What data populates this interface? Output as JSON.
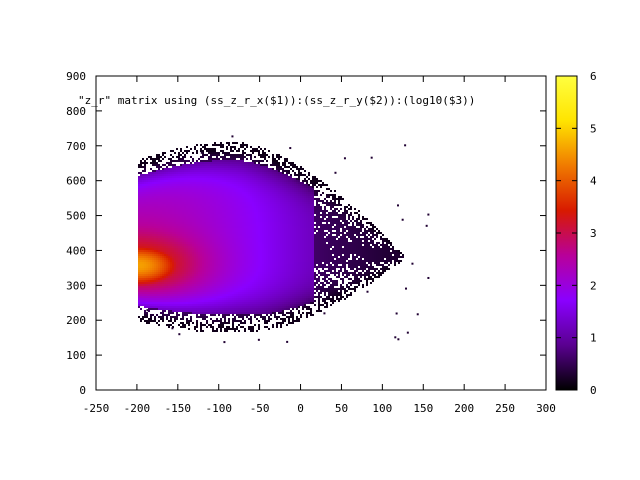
{
  "chart_data": {
    "type": "heatmap",
    "title": "",
    "legend_entry": "\"z_r\" matrix using (ss_z_r_x($1)):(ss_z_r_y($2)):(log10($3))",
    "legend_placement": "top-left, inside plot",
    "xlabel": "",
    "ylabel": "",
    "xlim": [
      -250,
      300
    ],
    "ylim": [
      0,
      900
    ],
    "x_ticks": [
      "-250",
      "-200",
      "-150",
      "-100",
      "-50",
      "0",
      "50",
      "100",
      "150",
      "200",
      "250",
      "300"
    ],
    "y_ticks": [
      "0",
      "100",
      "200",
      "300",
      "400",
      "500",
      "600",
      "700",
      "800",
      "900"
    ],
    "grid": false,
    "colorbar": {
      "range": [
        0,
        6
      ],
      "ticks": [
        "0",
        "1",
        "2",
        "3",
        "4",
        "5",
        "6"
      ],
      "palette": [
        "#000000",
        "#5a0090",
        "#8a00ff",
        "#b8009a",
        "#d81a00",
        "#f07a00",
        "#ffe400",
        "#ffff40"
      ]
    },
    "distribution": {
      "x_min": -200,
      "x_extent_max": 160,
      "y_bottom_at_left_edge": 210,
      "y_top_at_left_edge": 650,
      "y_min": 140,
      "y_max": 740,
      "peak": {
        "x": -200,
        "y": 360,
        "log10_count": 4.6
      },
      "core_region": {
        "x": [
          -200,
          -120
        ],
        "y": [
          290,
          460
        ],
        "log10_count": 3.5
      },
      "outer_region_log10_count": 0.5
    }
  }
}
